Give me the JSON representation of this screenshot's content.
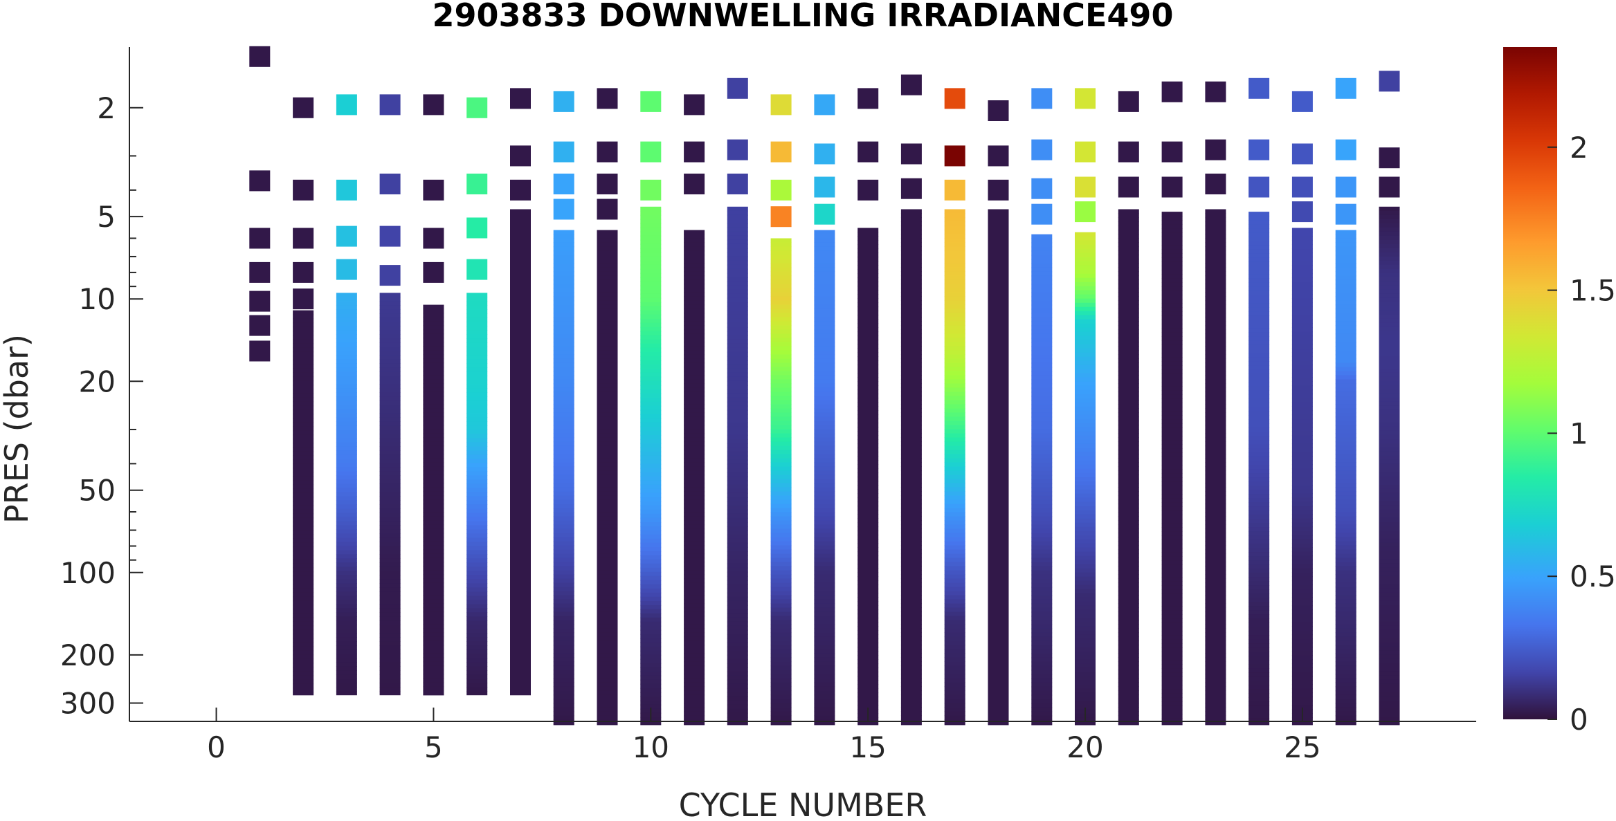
{
  "chart_data": {
    "type": "heatmap",
    "title": "2903833  DOWNWELLING IRRADIANCE490",
    "xlabel": "CYCLE NUMBER",
    "ylabel": "PRES (dbar)",
    "x_ticks": [
      "0",
      "5",
      "10",
      "15",
      "20",
      "25"
    ],
    "y_ticks": [
      "2",
      "5",
      "10",
      "20",
      "50",
      "100",
      "200",
      "300"
    ],
    "colorbar_ticks": [
      "0",
      "0.5",
      "1",
      "1.5",
      "2"
    ],
    "y_scale": "log",
    "y_reversed": true,
    "xlim": [
      -2,
      29
    ],
    "ylim": [
      1.2,
      350
    ],
    "clim": [
      0,
      2.35
    ],
    "colormap": "turbo",
    "bin_color": "#2d1338",
    "cycles": [
      {
        "cycle": 1,
        "top": [
          {
            "p": 1.3,
            "v": 0.02
          },
          {
            "p": 3.7,
            "v": 0.02
          },
          {
            "p": 6.0,
            "v": 0.02
          },
          {
            "p": 8.0,
            "v": 0.02
          },
          {
            "p": 10.2,
            "v": 0.02
          },
          {
            "p": 12.5,
            "v": 0.02
          },
          {
            "p": 15.5,
            "v": 0.02
          }
        ],
        "deep": null
      },
      {
        "cycle": 2,
        "top": [
          {
            "p": 2.0,
            "v": 0.02
          },
          {
            "p": 4.0,
            "v": 0.02
          },
          {
            "p": 6.0,
            "v": 0.02
          },
          {
            "p": 8.0,
            "v": 0.02
          },
          {
            "p": 10.0,
            "v": 0.02
          }
        ],
        "deep": [
          11,
          280,
          [
            [
              11,
              0.02
            ],
            [
              280,
              0.02
            ]
          ]
        ]
      },
      {
        "cycle": 3,
        "top": [
          {
            "p": 1.95,
            "v": 0.68
          },
          {
            "p": 4.0,
            "v": 0.65
          },
          {
            "p": 5.9,
            "v": 0.62
          },
          {
            "p": 7.8,
            "v": 0.6
          }
        ],
        "deep": [
          9.5,
          280,
          [
            [
              9.5,
              0.55
            ],
            [
              20,
              0.45
            ],
            [
              40,
              0.35
            ],
            [
              60,
              0.25
            ],
            [
              100,
              0.1
            ],
            [
              150,
              0.04
            ],
            [
              280,
              0.02
            ]
          ]
        ]
      },
      {
        "cycle": 4,
        "top": [
          {
            "p": 1.95,
            "v": 0.15
          },
          {
            "p": 3.8,
            "v": 0.15
          },
          {
            "p": 5.9,
            "v": 0.16
          },
          {
            "p": 8.2,
            "v": 0.15
          }
        ],
        "deep": [
          9.5,
          280,
          [
            [
              9.5,
              0.13
            ],
            [
              20,
              0.1
            ],
            [
              50,
              0.06
            ],
            [
              100,
              0.03
            ],
            [
              280,
              0.02
            ]
          ]
        ]
      },
      {
        "cycle": 5,
        "top": [
          {
            "p": 1.95,
            "v": 0.02
          },
          {
            "p": 4.0,
            "v": 0.02
          },
          {
            "p": 6.0,
            "v": 0.02
          },
          {
            "p": 8.0,
            "v": 0.02
          }
        ],
        "deep": [
          10.5,
          280,
          [
            [
              10.5,
              0.02
            ],
            [
              280,
              0.02
            ]
          ]
        ]
      },
      {
        "cycle": 6,
        "top": [
          {
            "p": 2.0,
            "v": 0.95
          },
          {
            "p": 3.8,
            "v": 0.9
          },
          {
            "p": 5.5,
            "v": 0.85
          },
          {
            "p": 7.8,
            "v": 0.8
          }
        ],
        "deep": [
          9.5,
          280,
          [
            [
              9.5,
              0.75
            ],
            [
              20,
              0.7
            ],
            [
              30,
              0.65
            ],
            [
              40,
              0.5
            ],
            [
              60,
              0.35
            ],
            [
              100,
              0.18
            ],
            [
              150,
              0.07
            ],
            [
              280,
              0.02
            ]
          ]
        ]
      },
      {
        "cycle": 7,
        "top": [
          {
            "p": 1.85,
            "v": 0.02
          },
          {
            "p": 3.0,
            "v": 0.02
          },
          {
            "p": 4.0,
            "v": 0.02
          }
        ],
        "deep": [
          4.7,
          280,
          [
            [
              4.7,
              0.02
            ],
            [
              280,
              0.02
            ]
          ]
        ]
      },
      {
        "cycle": 8,
        "top": [
          {
            "p": 1.9,
            "v": 0.55
          },
          {
            "p": 2.9,
            "v": 0.55
          },
          {
            "p": 3.8,
            "v": 0.5
          },
          {
            "p": 4.7,
            "v": 0.5
          }
        ],
        "deep": [
          5.6,
          360,
          [
            [
              5.6,
              0.48
            ],
            [
              20,
              0.4
            ],
            [
              50,
              0.3
            ],
            [
              100,
              0.15
            ],
            [
              150,
              0.06
            ],
            [
              360,
              0.02
            ]
          ]
        ]
      },
      {
        "cycle": 9,
        "top": [
          {
            "p": 1.85,
            "v": 0.02
          },
          {
            "p": 2.9,
            "v": 0.02
          },
          {
            "p": 3.8,
            "v": 0.02
          },
          {
            "p": 4.7,
            "v": 0.02
          }
        ],
        "deep": [
          5.6,
          360,
          [
            [
              5.6,
              0.02
            ],
            [
              360,
              0.02
            ]
          ]
        ]
      },
      {
        "cycle": 10,
        "top": [
          {
            "p": 1.9,
            "v": 1.0
          },
          {
            "p": 2.9,
            "v": 1.0
          },
          {
            "p": 4.0,
            "v": 1.05
          }
        ],
        "deep": [
          4.6,
          360,
          [
            [
              4.6,
              1.05
            ],
            [
              10,
              1.0
            ],
            [
              15,
              0.85
            ],
            [
              30,
              0.65
            ],
            [
              60,
              0.45
            ],
            [
              100,
              0.25
            ],
            [
              150,
              0.08
            ],
            [
              360,
              0.02
            ]
          ]
        ]
      },
      {
        "cycle": 11,
        "top": [
          {
            "p": 1.95,
            "v": 0.02
          },
          {
            "p": 2.9,
            "v": 0.02
          },
          {
            "p": 3.8,
            "v": 0.02
          }
        ],
        "deep": [
          5.6,
          360,
          [
            [
              5.6,
              0.02
            ],
            [
              360,
              0.02
            ]
          ]
        ]
      },
      {
        "cycle": 12,
        "top": [
          {
            "p": 1.7,
            "v": 0.15
          },
          {
            "p": 2.85,
            "v": 0.15
          },
          {
            "p": 3.8,
            "v": 0.15
          }
        ],
        "deep": [
          4.6,
          360,
          [
            [
              4.6,
              0.15
            ],
            [
              30,
              0.12
            ],
            [
              100,
              0.06
            ],
            [
              360,
              0.02
            ]
          ]
        ]
      },
      {
        "cycle": 13,
        "top": [
          {
            "p": 1.95,
            "v": 1.4
          },
          {
            "p": 2.9,
            "v": 1.55
          },
          {
            "p": 4.0,
            "v": 1.2
          },
          {
            "p": 5.0,
            "v": 1.75
          }
        ],
        "deep": [
          6.0,
          360,
          [
            [
              6.0,
              1.3
            ],
            [
              10,
              1.45
            ],
            [
              15,
              1.2
            ],
            [
              20,
              1.05
            ],
            [
              30,
              0.9
            ],
            [
              40,
              0.7
            ],
            [
              60,
              0.45
            ],
            [
              100,
              0.22
            ],
            [
              150,
              0.08
            ],
            [
              360,
              0.02
            ]
          ]
        ]
      },
      {
        "cycle": 14,
        "top": [
          {
            "p": 1.95,
            "v": 0.52
          },
          {
            "p": 2.95,
            "v": 0.55
          },
          {
            "p": 3.9,
            "v": 0.58
          },
          {
            "p": 4.9,
            "v": 0.72
          }
        ],
        "deep": [
          5.6,
          360,
          [
            [
              5.6,
              0.4
            ],
            [
              20,
              0.35
            ],
            [
              30,
              0.28
            ],
            [
              60,
              0.18
            ],
            [
              100,
              0.08
            ],
            [
              360,
              0.02
            ]
          ]
        ]
      },
      {
        "cycle": 15,
        "top": [
          {
            "p": 1.85,
            "v": 0.02
          },
          {
            "p": 2.9,
            "v": 0.02
          },
          {
            "p": 4.0,
            "v": 0.02
          }
        ],
        "deep": [
          5.5,
          360,
          [
            [
              5.5,
              0.02
            ],
            [
              360,
              0.02
            ]
          ]
        ]
      },
      {
        "cycle": 16,
        "top": [
          {
            "p": 1.65,
            "v": 0.02
          },
          {
            "p": 2.95,
            "v": 0.02
          },
          {
            "p": 3.95,
            "v": 0.02
          }
        ],
        "deep": [
          4.7,
          360,
          [
            [
              4.7,
              0.02
            ],
            [
              360,
              0.02
            ]
          ]
        ]
      },
      {
        "cycle": 17,
        "top": [
          {
            "p": 1.85,
            "v": 1.95
          },
          {
            "p": 3.0,
            "v": 2.35
          },
          {
            "p": 4.0,
            "v": 1.55
          }
        ],
        "deep": [
          4.7,
          360,
          [
            [
              4.7,
              1.55
            ],
            [
              10,
              1.45
            ],
            [
              15,
              1.3
            ],
            [
              20,
              1.15
            ],
            [
              30,
              0.9
            ],
            [
              40,
              0.7
            ],
            [
              60,
              0.45
            ],
            [
              100,
              0.22
            ],
            [
              150,
              0.08
            ],
            [
              360,
              0.02
            ]
          ]
        ]
      },
      {
        "cycle": 18,
        "top": [
          {
            "p": 2.05,
            "v": 0.02
          },
          {
            "p": 3.0,
            "v": 0.02
          },
          {
            "p": 4.0,
            "v": 0.02
          }
        ],
        "deep": [
          4.7,
          360,
          [
            [
              4.7,
              0.02
            ],
            [
              360,
              0.02
            ]
          ]
        ]
      },
      {
        "cycle": 19,
        "top": [
          {
            "p": 1.85,
            "v": 0.42
          },
          {
            "p": 2.85,
            "v": 0.42
          },
          {
            "p": 3.95,
            "v": 0.42
          },
          {
            "p": 4.9,
            "v": 0.42
          }
        ],
        "deep": [
          5.8,
          360,
          [
            [
              5.8,
              0.38
            ],
            [
              30,
              0.3
            ],
            [
              60,
              0.2
            ],
            [
              100,
              0.1
            ],
            [
              360,
              0.02
            ]
          ]
        ]
      },
      {
        "cycle": 20,
        "top": [
          {
            "p": 1.85,
            "v": 1.35
          },
          {
            "p": 2.9,
            "v": 1.35
          },
          {
            "p": 3.9,
            "v": 1.38
          },
          {
            "p": 4.8,
            "v": 1.15
          }
        ],
        "deep": [
          5.7,
          360,
          [
            [
              5.7,
              1.35
            ],
            [
              8,
              1.2
            ],
            [
              10,
              1.0
            ],
            [
              12,
              0.7
            ],
            [
              20,
              0.5
            ],
            [
              40,
              0.35
            ],
            [
              70,
              0.2
            ],
            [
              120,
              0.08
            ],
            [
              360,
              0.02
            ]
          ]
        ]
      },
      {
        "cycle": 21,
        "top": [
          {
            "p": 1.9,
            "v": 0.02
          },
          {
            "p": 2.9,
            "v": 0.02
          },
          {
            "p": 3.9,
            "v": 0.02
          }
        ],
        "deep": [
          4.7,
          360,
          [
            [
              4.7,
              0.02
            ],
            [
              360,
              0.02
            ]
          ]
        ]
      },
      {
        "cycle": 22,
        "top": [
          {
            "p": 1.75,
            "v": 0.02
          },
          {
            "p": 2.9,
            "v": 0.02
          },
          {
            "p": 3.9,
            "v": 0.02
          }
        ],
        "deep": [
          4.8,
          360,
          [
            [
              4.8,
              0.02
            ],
            [
              360,
              0.02
            ]
          ]
        ]
      },
      {
        "cycle": 23,
        "top": [
          {
            "p": 1.75,
            "v": 0.02
          },
          {
            "p": 2.85,
            "v": 0.02
          },
          {
            "p": 3.8,
            "v": 0.02
          }
        ],
        "deep": [
          4.7,
          360,
          [
            [
              4.7,
              0.02
            ],
            [
              360,
              0.02
            ]
          ]
        ]
      },
      {
        "cycle": 24,
        "top": [
          {
            "p": 1.7,
            "v": 0.24
          },
          {
            "p": 2.85,
            "v": 0.24
          },
          {
            "p": 3.9,
            "v": 0.22
          }
        ],
        "deep": [
          4.8,
          360,
          [
            [
              4.8,
              0.24
            ],
            [
              30,
              0.2
            ],
            [
              80,
              0.1
            ],
            [
              150,
              0.04
            ],
            [
              360,
              0.02
            ]
          ]
        ]
      },
      {
        "cycle": 25,
        "top": [
          {
            "p": 1.9,
            "v": 0.24
          },
          {
            "p": 2.95,
            "v": 0.22
          },
          {
            "p": 3.9,
            "v": 0.2
          },
          {
            "p": 4.8,
            "v": 0.18
          }
        ],
        "deep": [
          5.5,
          360,
          [
            [
              5.5,
              0.17
            ],
            [
              50,
              0.12
            ],
            [
              100,
              0.05
            ],
            [
              360,
              0.02
            ]
          ]
        ]
      },
      {
        "cycle": 26,
        "top": [
          {
            "p": 1.7,
            "v": 0.5
          },
          {
            "p": 2.85,
            "v": 0.5
          },
          {
            "p": 3.9,
            "v": 0.45
          },
          {
            "p": 4.9,
            "v": 0.45
          }
        ],
        "deep": [
          5.6,
          360,
          [
            [
              5.6,
              0.45
            ],
            [
              17,
              0.4
            ],
            [
              20,
              0.3
            ],
            [
              60,
              0.2
            ],
            [
              100,
              0.1
            ],
            [
              360,
              0.02
            ]
          ]
        ]
      },
      {
        "cycle": 27,
        "top": [
          {
            "p": 1.6,
            "v": 0.15
          },
          {
            "p": 3.05,
            "v": 0.02
          },
          {
            "p": 3.9,
            "v": 0.02
          }
        ],
        "deep": [
          4.6,
          360,
          [
            [
              4.6,
              0.02
            ],
            [
              8,
              0.1
            ],
            [
              15,
              0.12
            ],
            [
              30,
              0.1
            ],
            [
              80,
              0.05
            ],
            [
              360,
              0.02
            ]
          ]
        ]
      }
    ]
  }
}
